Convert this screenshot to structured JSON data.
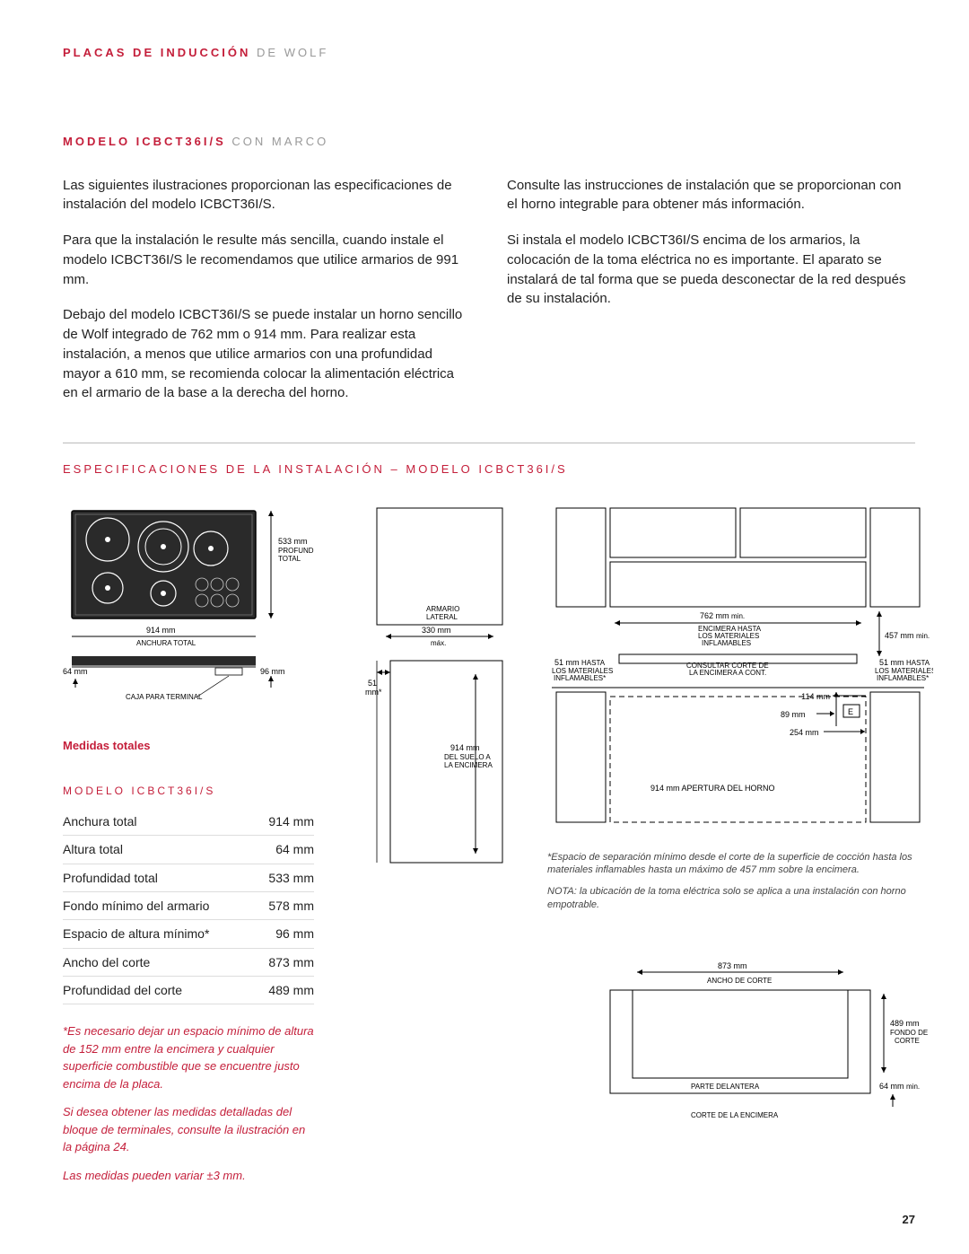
{
  "header": {
    "red": "PLACAS DE INDUCCIÓN",
    "gray": "DE WOLF"
  },
  "model_heading": {
    "red": "MODELO ICBCT36I/S",
    "gray": "CON MARCO"
  },
  "left_col": {
    "p1": "Las siguientes ilustraciones proporcionan las especificaciones de instalación del modelo ICBCT36I/S.",
    "p2": "Para que la instalación le resulte más sencilla, cuando instale el modelo ICBCT36I/S le recomendamos que utilice armarios de 991 mm.",
    "p3": "Debajo del modelo ICBCT36I/S se puede instalar un horno sencillo de Wolf integrado de 762 mm o 914 mm. Para realizar esta instalación, a menos que utilice armarios con una profundidad mayor a 610 mm, se recomienda colocar la alimentación eléctrica en el armario de la base a la derecha del horno."
  },
  "right_col": {
    "p1": "Consulte las instrucciones de instalación que se proporcionan con el horno integrable para obtener más información.",
    "p2": "Si instala el modelo ICBCT36I/S encima de los armarios, la colocación de la toma eléctrica no es importante. El aparato se instalará de tal forma que se pueda desconectar de la red después de su instalación."
  },
  "spec_heading": "ESPECIFICACIONES DE LA INSTALACIÓN – MODELO ICBCT36I/S",
  "top_diagram": {
    "depth": "533 mm",
    "depth_lbl1": "PROFUNDIDAD",
    "depth_lbl2": "TOTAL",
    "width": "914 mm",
    "width_lbl": "ANCHURA TOTAL",
    "h64": "64 mm",
    "h96": "96 mm",
    "terminal": "CAJA PARA TERMINAL"
  },
  "caption_red": "Medidas totales",
  "mid_diagram": {
    "armario": "ARMARIO",
    "lateral": "LATERAL",
    "w330": "330 mm",
    "max": "máx.",
    "w51a": "51",
    "w51b": "mm*",
    "h914": "914 mm",
    "h914_lbl1": "DEL SUELO A",
    "h914_lbl2": "LA ENCIMERA"
  },
  "right_diagram": {
    "w762": "762 mm",
    "w762_lbl1": "ENCIMERA HASTA",
    "w762_lbl2": "LOS MATERIALES",
    "w762_lbl3": "INFLAMABLES",
    "w457": "457 mm",
    "w51l": "51 mm",
    "w51l_lbl1": "LOS MATERIALES",
    "w51l_lbl2": "INFLAMABLES*",
    "w51r": "51 mm",
    "w51r_lbl1": "LOS MATERIALES",
    "w51r_lbl2": "INFLAMABLES*",
    "consult": "CONSULTAR CORTE DE",
    "consult2": "LA ENCIMERA A CONT.",
    "w114": "114 mm",
    "w89": "89 mm",
    "E": "E",
    "w254": "254 mm",
    "opening": "914 mm APERTURA DEL HORNO",
    "hasta": "HASTA",
    "min": "min."
  },
  "footnotes": {
    "f1": "*Espacio de separación mínimo desde el corte de la superficie de cocción hasta los materiales inflamables hasta un máximo de 457 mm sobre la encimera.",
    "f2": "NOTA: la ubicación de la toma eléctrica solo se aplica a una instalación con horno empotrable."
  },
  "cutout": {
    "w873": "873 mm",
    "w873_lbl": "ANCHO DE CORTE",
    "d489": "489 mm",
    "d489_lbl1": "FONDO DE",
    "d489_lbl2": "CORTE",
    "front": "PARTE DELANTERA",
    "h64": "64 mm",
    "title": "CORTE DE LA ENCIMERA",
    "min": "min."
  },
  "table": {
    "title": "MODELO ICBCT36I/S",
    "rows": [
      {
        "label": "Anchura total",
        "value": "914 mm"
      },
      {
        "label": "Altura total",
        "value": "64 mm"
      },
      {
        "label": "Profundidad total",
        "value": "533 mm"
      },
      {
        "label": "Fondo mínimo del armario",
        "value": "578 mm"
      },
      {
        "label": "Espacio de altura mínimo*",
        "value": "96 mm"
      },
      {
        "label": "Ancho del corte",
        "value": "873 mm"
      },
      {
        "label": "Profundidad del corte",
        "value": "489 mm"
      }
    ]
  },
  "notes": {
    "n1": "*Es necesario dejar un espacio mínimo de altura de 152 mm entre la encimera y cualquier superficie combustible que se encuentre justo encima de la placa.",
    "n2": "Si desea obtener las medidas detalladas del bloque de terminales, consulte la ilustración en la página 24.",
    "n3": "Las medidas pueden variar ±3 mm."
  },
  "page_num": "27"
}
